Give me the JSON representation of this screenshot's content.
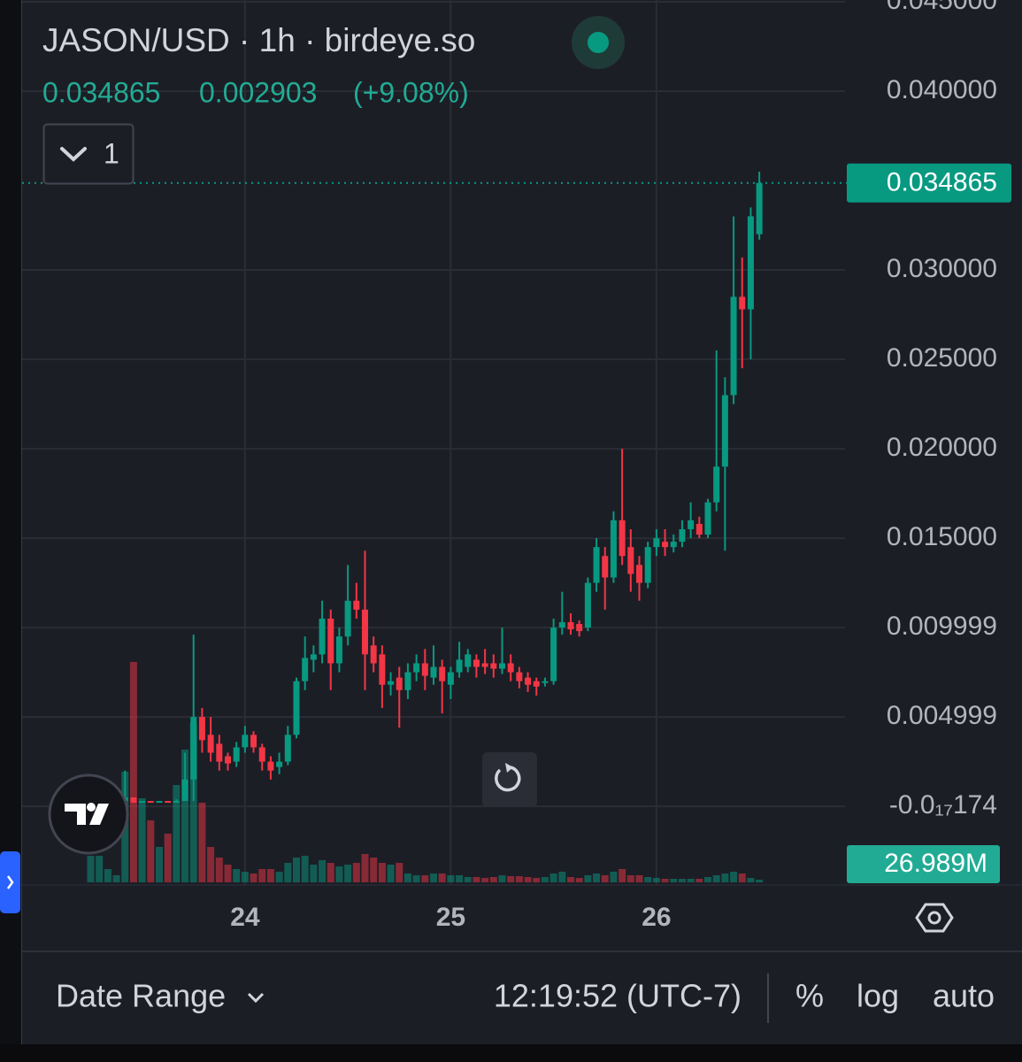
{
  "chart_data": {
    "type": "candlestick",
    "title": "JASON/USD · 1h · birdeye.so",
    "change": 0.002903,
    "change_percent_label": "(+9.08%)",
    "indicator_count": "1",
    "up_color": "#089981",
    "down_color": "#f23645",
    "x": [
      0,
      1,
      2,
      3,
      4,
      5,
      6,
      7,
      8,
      9,
      10,
      11,
      12,
      13,
      14,
      15,
      16,
      17,
      18,
      19,
      20,
      21,
      22,
      23,
      24,
      25,
      26,
      27,
      28,
      29,
      30,
      31,
      32,
      33,
      34,
      35,
      36,
      37,
      38,
      39,
      40,
      41,
      42,
      43,
      44,
      45,
      46,
      47,
      48,
      49,
      50,
      51,
      52,
      53,
      54,
      55,
      56,
      57,
      58,
      59,
      60,
      61,
      62,
      63,
      64,
      65,
      66,
      67,
      68,
      69,
      70,
      71,
      72,
      73,
      74,
      75,
      76,
      77,
      78
    ],
    "open": [
      0.0003,
      0.0003,
      0.0003,
      0.0003,
      0.0003,
      0.0005,
      0.0002,
      0.0003,
      0.0002,
      0.0003,
      0.0002,
      0.0003,
      0.0015,
      0.005,
      0.004,
      0.0035,
      0.0028,
      0.0025,
      0.0033,
      0.004,
      0.0033,
      0.0025,
      0.0022,
      0.0025,
      0.004,
      0.007,
      0.0082,
      0.0085,
      0.0105,
      0.008,
      0.0095,
      0.0115,
      0.011,
      0.009,
      0.0085,
      0.0068,
      0.0072,
      0.0065,
      0.0075,
      0.008,
      0.0072,
      0.0078,
      0.0068,
      0.0075,
      0.0078,
      0.0082,
      0.008,
      0.008,
      0.0077,
      0.008,
      0.0075,
      0.0072,
      0.007,
      0.0069,
      0.007,
      0.01,
      0.0103,
      0.0102,
      0.01,
      0.0125,
      0.014,
      0.0128,
      0.016,
      0.0145,
      0.0135,
      0.0125,
      0.0145,
      0.0148,
      0.0145,
      0.0148,
      0.0155,
      0.0158,
      0.0152,
      0.017,
      0.019,
      0.023,
      0.0285,
      0.0278,
      0.032
    ],
    "high": [
      0.0003,
      0.0003,
      0.0003,
      0.0003,
      0.002,
      0.0005,
      0.0003,
      0.0003,
      0.0003,
      0.0003,
      0.0004,
      0.003,
      0.0096,
      0.0055,
      0.005,
      0.004,
      0.003,
      0.0036,
      0.0045,
      0.0042,
      0.0035,
      0.0028,
      0.003,
      0.0045,
      0.0072,
      0.0095,
      0.009,
      0.0115,
      0.011,
      0.01,
      0.0135,
      0.0125,
      0.0143,
      0.0095,
      0.009,
      0.0075,
      0.0078,
      0.008,
      0.0085,
      0.0088,
      0.009,
      0.0082,
      0.0078,
      0.0092,
      0.0088,
      0.0085,
      0.0088,
      0.0085,
      0.01,
      0.0085,
      0.0078,
      0.0075,
      0.0072,
      0.0072,
      0.0105,
      0.012,
      0.0108,
      0.0104,
      0.0128,
      0.015,
      0.0145,
      0.0165,
      0.02,
      0.0155,
      0.014,
      0.0148,
      0.0155,
      0.0155,
      0.0152,
      0.016,
      0.017,
      0.0162,
      0.0172,
      0.0255,
      0.024,
      0.033,
      0.0307,
      0.0335,
      0.0355
    ],
    "low": [
      0.0003,
      0.0003,
      0.0003,
      0.0003,
      0.0003,
      0.0002,
      0.0002,
      0.0002,
      0.0002,
      0.0002,
      0.0002,
      0.0003,
      0.0003,
      0.003,
      0.0025,
      0.002,
      0.002,
      0.0022,
      0.003,
      0.003,
      0.002,
      0.0015,
      0.0018,
      0.0023,
      0.0038,
      0.0065,
      0.0075,
      0.008,
      0.0065,
      0.0075,
      0.009,
      0.0105,
      0.0065,
      0.0075,
      0.0055,
      0.0062,
      0.0044,
      0.006,
      0.007,
      0.0065,
      0.0068,
      0.0052,
      0.006,
      0.0072,
      0.0075,
      0.0072,
      0.0074,
      0.0072,
      0.0074,
      0.007,
      0.0066,
      0.0064,
      0.0062,
      0.0067,
      0.0068,
      0.0096,
      0.0096,
      0.0095,
      0.0098,
      0.012,
      0.011,
      0.0125,
      0.0135,
      0.012,
      0.0115,
      0.0122,
      0.014,
      0.014,
      0.0142,
      0.0145,
      0.015,
      0.015,
      0.015,
      0.0165,
      0.0143,
      0.0225,
      0.0245,
      0.025,
      0.0317
    ],
    "close": [
      0.0003,
      0.0003,
      0.0003,
      0.0003,
      0.0005,
      0.0002,
      0.0003,
      0.0002,
      0.0003,
      0.0002,
      0.0003,
      0.0015,
      0.005,
      0.0037,
      0.003,
      0.0025,
      0.0024,
      0.0033,
      0.004,
      0.0033,
      0.0025,
      0.002,
      0.0025,
      0.004,
      0.007,
      0.0083,
      0.0085,
      0.0105,
      0.008,
      0.0095,
      0.0115,
      0.011,
      0.0085,
      0.008,
      0.0068,
      0.007,
      0.0065,
      0.0075,
      0.008,
      0.0073,
      0.0078,
      0.007,
      0.0075,
      0.0082,
      0.0085,
      0.0078,
      0.0078,
      0.0077,
      0.008,
      0.0075,
      0.007,
      0.0068,
      0.0067,
      0.007,
      0.01,
      0.0103,
      0.0099,
      0.0098,
      0.0125,
      0.0145,
      0.0128,
      0.016,
      0.014,
      0.013,
      0.0125,
      0.0145,
      0.015,
      0.0145,
      0.0148,
      0.0155,
      0.016,
      0.0152,
      0.017,
      0.019,
      0.023,
      0.0285,
      0.0278,
      0.033,
      0.034865
    ],
    "volume": [
      270,
      270,
      135,
      72,
      1125,
      2241,
      855,
      630,
      360,
      495,
      990,
      1350,
      1620,
      810,
      360,
      252,
      180,
      135,
      108,
      90,
      135,
      135,
      108,
      198,
      252,
      270,
      180,
      225,
      198,
      162,
      180,
      198,
      288,
      252,
      198,
      180,
      198,
      90,
      72,
      72,
      90,
      90,
      72,
      72,
      54,
      54,
      45,
      54,
      72,
      63,
      63,
      54,
      45,
      54,
      90,
      108,
      54,
      45,
      72,
      90,
      72,
      108,
      135,
      72,
      72,
      54,
      45,
      36,
      36,
      36,
      36,
      36,
      54,
      72,
      90,
      108,
      90,
      45,
      26.989
    ],
    "volume_label": "26.989M",
    "xlim": [
      -8,
      88
    ],
    "xticks": [
      {
        "value": 18,
        "label": "24"
      },
      {
        "value": 42,
        "label": "25"
      },
      {
        "value": 66,
        "label": "26"
      }
    ],
    "ylim": [
      -0.0044,
      0.0451
    ],
    "yticks": [
      {
        "value": 0.045,
        "label": "0.045000"
      },
      {
        "value": 0.04,
        "label": "0.040000"
      },
      {
        "value": 0.03,
        "label": "0.030000"
      },
      {
        "value": 0.025,
        "label": "0.025000"
      },
      {
        "value": 0.02,
        "label": "0.020000"
      },
      {
        "value": 0.015,
        "label": "0.015000"
      },
      {
        "value": 0.01,
        "label": "0.009999"
      },
      {
        "value": 0.005,
        "label": "0.004999"
      },
      {
        "value": 0,
        "label": "-0.0₁₇174"
      }
    ],
    "grid": true
  },
  "toolbar": {
    "date_range": "Date Range",
    "time": "12:19:52 (UTC-7)",
    "percent": "%",
    "log": "log",
    "auto": "auto"
  }
}
